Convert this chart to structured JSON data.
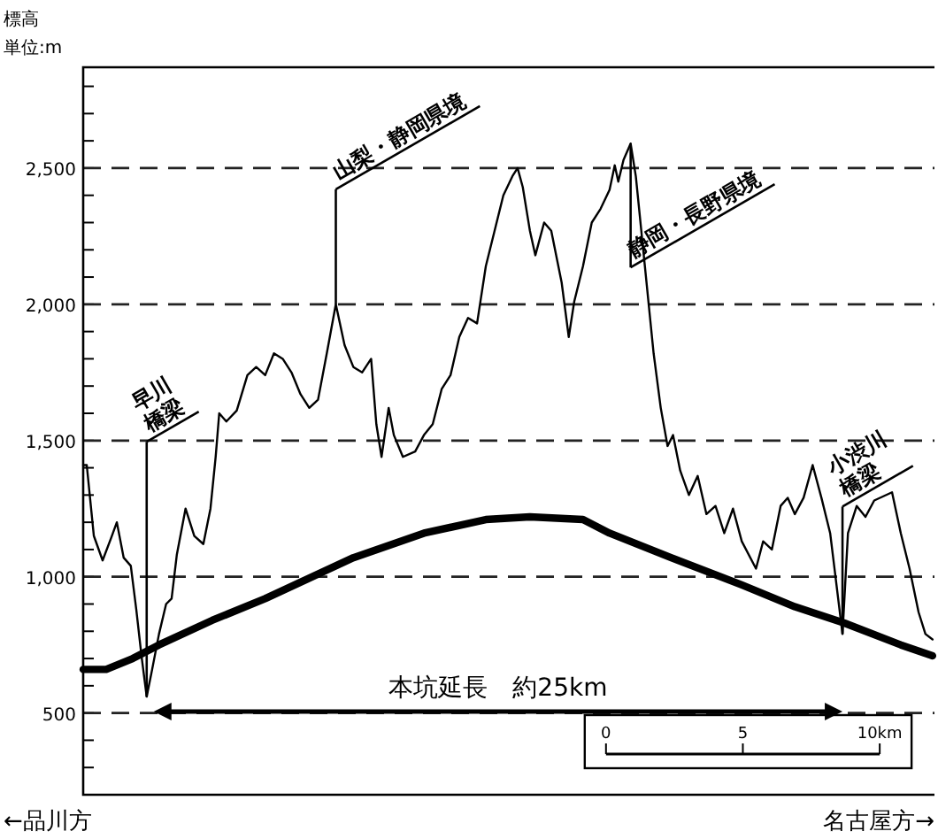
{
  "chart_data": {
    "type": "line",
    "ylabel": "標高",
    "xlim": [
      -19.1,
      12.0
    ],
    "ylim": [
      200,
      2870
    ],
    "xticks": [
      0,
      5,
      {
        "value": 10,
        "label": "10km"
      }
    ],
    "yticks": [
      {
        "value": 300,
        "label": null
      },
      {
        "value": 400,
        "label": null
      },
      500,
      {
        "value": 600,
        "label": null
      },
      {
        "value": 700,
        "label": null
      },
      {
        "value": 800,
        "label": null
      },
      {
        "value": 900,
        "label": null
      },
      {
        "value": 1000,
        "label": "1,000"
      },
      {
        "value": 1100,
        "label": null
      },
      {
        "value": 1200,
        "label": null
      },
      {
        "value": 1300,
        "label": null
      },
      {
        "value": 1400,
        "label": null
      },
      {
        "value": 1500,
        "label": "1,500"
      },
      {
        "value": 1600,
        "label": null
      },
      {
        "value": 1700,
        "label": null
      },
      {
        "value": 1800,
        "label": null
      },
      {
        "value": 1900,
        "label": null
      },
      {
        "value": 2000,
        "label": "2,000"
      },
      {
        "value": 2100,
        "label": null
      },
      {
        "value": 2200,
        "label": null
      },
      {
        "value": 2300,
        "label": null
      },
      {
        "value": 2400,
        "label": null
      },
      {
        "value": 2500,
        "label": "2,500"
      },
      {
        "value": 2600,
        "label": null
      },
      {
        "value": 2700,
        "label": null
      },
      {
        "value": 2800,
        "label": null
      }
    ],
    "grid": "y",
    "marker": "none",
    "series": [
      {
        "color": "#000000",
        "line_style": "solid",
        "x": [
          -19.1,
          -18.97,
          -18.71,
          -18.39,
          -18.07,
          -17.87,
          -17.62,
          -17.36,
          -17.16,
          -16.97,
          -16.78,
          -16.58,
          -16.33,
          -16.07,
          -15.87,
          -15.68,
          -15.36,
          -15.04,
          -14.71,
          -14.45,
          -14.26,
          -14.13,
          -13.87,
          -13.49,
          -13.1,
          -12.78,
          -12.45,
          -12.13,
          -11.81,
          -11.49,
          -11.16,
          -10.84,
          -10.52,
          -10.2,
          -9.87,
          -9.55,
          -9.23,
          -8.91,
          -8.58,
          -8.39,
          -8.2,
          -7.94,
          -7.75,
          -7.42,
          -6.97,
          -6.65,
          -6.33,
          -6.0,
          -5.68,
          -5.36,
          -5.04,
          -4.71,
          -4.39,
          -4.07,
          -3.75,
          -3.42,
          -3.23,
          -3.04,
          -2.78,
          -2.58,
          -2.26,
          -2.0,
          -1.62,
          -1.36,
          -1.16,
          -0.84,
          -0.52,
          -0.2,
          0.13,
          0.32,
          0.45,
          0.64,
          0.9,
          1.09,
          1.42,
          1.74,
          2.0,
          2.25,
          2.45,
          2.71,
          3.03,
          3.35,
          3.67,
          4.0,
          4.32,
          4.64,
          4.96,
          5.48,
          5.74,
          6.06,
          6.38,
          6.64,
          6.9,
          7.22,
          7.55,
          7.87,
          8.19,
          8.64,
          8.84,
          9.16,
          9.48,
          9.8,
          10.45,
          10.77,
          11.09,
          11.42,
          11.67,
          11.93
        ],
        "values": [
          1410,
          1410,
          1150,
          1060,
          1145,
          1200,
          1070,
          1040,
          880,
          710,
          560,
          660,
          790,
          900,
          920,
          1080,
          1250,
          1150,
          1120,
          1250,
          1440,
          1600,
          1570,
          1610,
          1740,
          1770,
          1740,
          1820,
          1800,
          1750,
          1670,
          1620,
          1650,
          1820,
          2000,
          1850,
          1770,
          1750,
          1800,
          1560,
          1440,
          1620,
          1520,
          1440,
          1460,
          1520,
          1560,
          1690,
          1740,
          1880,
          1950,
          1930,
          2140,
          2270,
          2400,
          2470,
          2500,
          2430,
          2270,
          2180,
          2300,
          2270,
          2080,
          1880,
          2010,
          2140,
          2300,
          2350,
          2420,
          2510,
          2450,
          2530,
          2590,
          2470,
          2140,
          1820,
          1620,
          1480,
          1520,
          1390,
          1300,
          1370,
          1230,
          1260,
          1160,
          1250,
          1130,
          1030,
          1130,
          1100,
          1260,
          1290,
          1230,
          1290,
          1410,
          1290,
          1160,
          790,
          1160,
          1260,
          1220,
          1280,
          1310,
          1160,
          1030,
          870,
          790,
          770
        ]
      },
      {
        "color": "#000000",
        "line_style": "solid",
        "x": [
          -19.1,
          -18.26,
          -17.29,
          -16.33,
          -14.39,
          -12.45,
          -9.23,
          -6.65,
          -4.39,
          -2.78,
          -0.84,
          0.13,
          2.38,
          4.96,
          6.9,
          8.71,
          10.77,
          11.93
        ],
        "values": [
          660,
          660,
          700,
          750,
          840,
          920,
          1070,
          1160,
          1210,
          1220,
          1210,
          1160,
          1070,
          970,
          890,
          830,
          750,
          710
        ]
      }
    ],
    "annotations": [
      {
        "text": "早川\n橋梁",
        "x": -16.78,
        "y": 560
      },
      {
        "text": "山梨・静岡県境",
        "x": -9.87,
        "y": 2000
      },
      {
        "text": "静岡・長野県境",
        "x": 0.9,
        "y": 2590
      },
      {
        "text": "小渋川\n橋梁",
        "x": 8.64,
        "y": 790
      },
      "本坑延長　約25km",
      "単位:m",
      "←品川方",
      "名古屋方→"
    ]
  }
}
